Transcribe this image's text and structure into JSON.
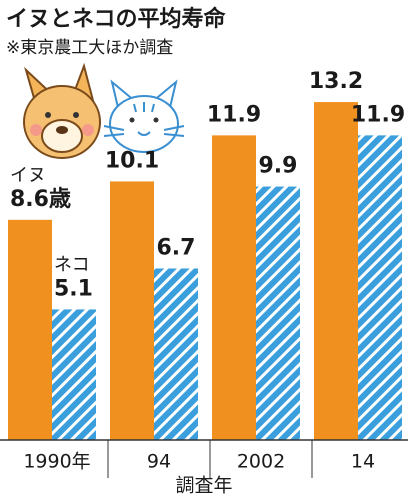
{
  "chart_data": {
    "type": "bar",
    "title": "イヌとネコの平均寿命",
    "subtitle": "※東京農工大ほか調査",
    "x_label": "調査年",
    "categories": [
      "1990年",
      "94",
      "2002",
      "14"
    ],
    "series": [
      {
        "name": "イヌ",
        "color": "#f0901e",
        "values": [
          8.6,
          10.1,
          11.9,
          13.2
        ],
        "value_labels": [
          "8.6歳",
          "10.1",
          "11.9",
          "13.2"
        ]
      },
      {
        "name": "ネコ",
        "color": "#3a9fdc",
        "values": [
          5.1,
          6.7,
          9.9,
          11.9
        ]
      }
    ]
  }
}
